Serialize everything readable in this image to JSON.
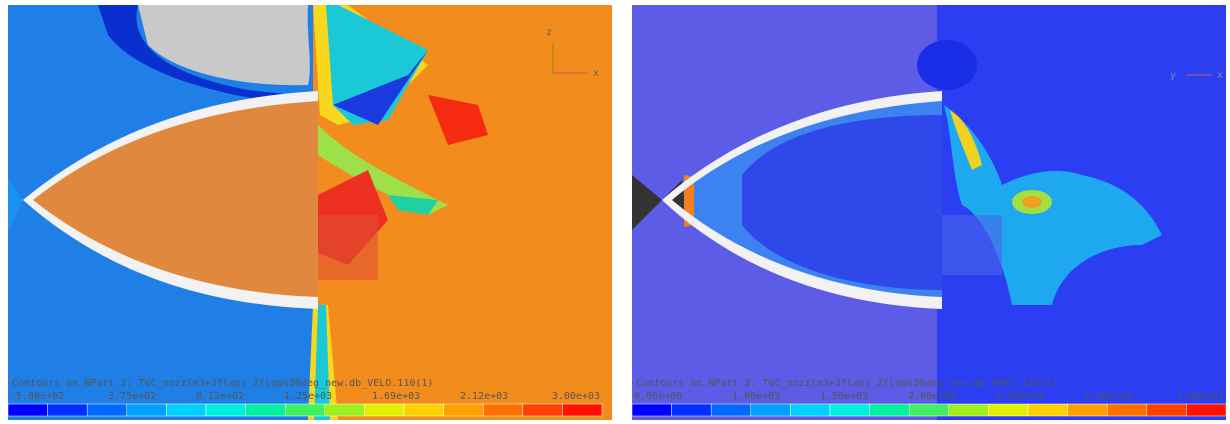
{
  "panels": [
    {
      "caption": "Contours on NPart_2: TVC_nozzle3+3flaps_2flaps30deg_new.db_VELO.110(1)",
      "scale_labels": [
        "-5.00e+02",
        "3.75e+02",
        "8.12e+02",
        "1.25e+03",
        "1.69e+03",
        "2.12e+03",
        "3.00e+03"
      ],
      "axes": [
        "z",
        "x"
      ]
    },
    {
      "caption": "Contours on NPart_2: TVC_nozzle3+3flaps_2flaps30deg_new.db_PRES.110(1)",
      "scale_labels": [
        "0.00e+00",
        "1.00e+03",
        "1.50e+03",
        "2.00e+03",
        "2.50e+03",
        "3.00e+03",
        "4.00e+03"
      ],
      "axes": [
        "y",
        "x"
      ]
    }
  ]
}
